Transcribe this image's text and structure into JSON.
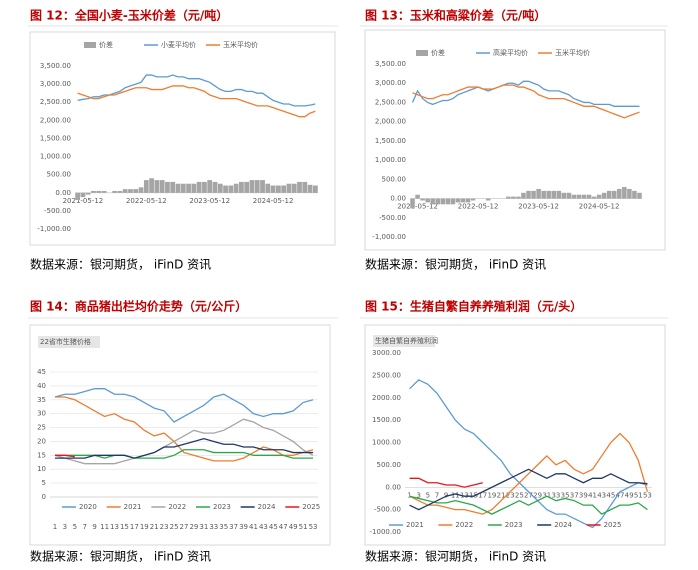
{
  "chart_data": [
    {
      "type": "line",
      "title": "图 12：全国小麦-玉米价差（元/吨）",
      "source": "数据来源：银河期货， iFinD 资讯",
      "categories": [
        null,
        "2021-05-12",
        null,
        null,
        null,
        null,
        null,
        null,
        null,
        null,
        null,
        null,
        null,
        "2022-05-12",
        null,
        null,
        null,
        null,
        null,
        null,
        null,
        null,
        null,
        null,
        null,
        "2023-05-12",
        null,
        null,
        null,
        null,
        null,
        null,
        null,
        null,
        null,
        null,
        null,
        "2024-05-12",
        null,
        null,
        null,
        null,
        null,
        null,
        null,
        null
      ],
      "ylim": [
        -1000,
        3500
      ],
      "yticks": [
        {
          "value": -1000,
          "label": "-1,000.00"
        },
        {
          "value": -500,
          "label": "-500.00"
        },
        {
          "value": 0,
          "label": "0.00"
        },
        {
          "value": 500,
          "label": "500.00"
        },
        {
          "value": 1000,
          "label": "1,000.00"
        },
        {
          "value": 1500,
          "label": "1,500.00"
        },
        {
          "value": 2000,
          "label": "2,000.00"
        },
        {
          "value": 2500,
          "label": "2,500.00"
        },
        {
          "value": 3000,
          "label": "3,000.00"
        },
        {
          "value": 3500,
          "label": "3,500.00"
        }
      ],
      "grid": false,
      "legend": "top",
      "series": [
        {
          "name": "价差",
          "type": "bar",
          "color": "#a5a5a5",
          "values": [
            -200,
            -120,
            -50,
            50,
            50,
            50,
            0,
            50,
            50,
            100,
            100,
            100,
            150,
            350,
            400,
            350,
            350,
            300,
            300,
            250,
            250,
            250,
            250,
            300,
            300,
            350,
            300,
            250,
            200,
            200,
            250,
            300,
            300,
            350,
            350,
            350,
            250,
            200,
            200,
            200,
            250,
            250,
            300,
            300,
            220,
            200
          ]
        },
        {
          "name": "小麦平均价",
          "color": "#5b9bd5",
          "values": [
            2550,
            2580,
            2600,
            2650,
            2650,
            2700,
            2700,
            2750,
            2800,
            2900,
            2950,
            3000,
            3050,
            3250,
            3250,
            3200,
            3200,
            3200,
            3250,
            3200,
            3200,
            3150,
            3150,
            3150,
            3100,
            3050,
            2950,
            2850,
            2800,
            2800,
            2850,
            2850,
            2800,
            2800,
            2750,
            2750,
            2650,
            2550,
            2500,
            2450,
            2450,
            2400,
            2400,
            2400,
            2420,
            2450
          ]
        },
        {
          "name": "玉米平均价",
          "color": "#ed7d31",
          "values": [
            2750,
            2700,
            2650,
            2600,
            2600,
            2650,
            2700,
            2700,
            2750,
            2800,
            2850,
            2900,
            2900,
            2900,
            2850,
            2850,
            2850,
            2900,
            2950,
            2950,
            2950,
            2900,
            2900,
            2850,
            2800,
            2700,
            2650,
            2600,
            2600,
            2600,
            2600,
            2550,
            2500,
            2450,
            2400,
            2400,
            2400,
            2350,
            2300,
            2250,
            2200,
            2150,
            2100,
            2100,
            2200,
            2250
          ]
        }
      ]
    },
    {
      "type": "line",
      "title": "图 13：玉米和高粱价差（元/吨）",
      "source": "数据来源：银河期货， iFinD 资讯",
      "categories": [
        null,
        "2021-05-12",
        null,
        null,
        null,
        null,
        null,
        null,
        null,
        null,
        null,
        null,
        null,
        "2022-05-12",
        null,
        null,
        null,
        null,
        null,
        null,
        null,
        null,
        null,
        null,
        null,
        "2023-05-12",
        null,
        null,
        null,
        null,
        null,
        null,
        null,
        null,
        null,
        null,
        null,
        "2024-05-12",
        null,
        null,
        null,
        null,
        null,
        null,
        null,
        null
      ],
      "ylim": [
        -1000,
        3500
      ],
      "yticks": [
        {
          "value": -1000,
          "label": "-1,000.00"
        },
        {
          "value": -500,
          "label": "-500.00"
        },
        {
          "value": 0,
          "label": "0.00"
        },
        {
          "value": 500,
          "label": "500.00"
        },
        {
          "value": 1000,
          "label": "1,000.00"
        },
        {
          "value": 1500,
          "label": "1,500.00"
        },
        {
          "value": 2000,
          "label": "2,000.00"
        },
        {
          "value": 2500,
          "label": "2,500.00"
        },
        {
          "value": 3000,
          "label": "3,000.00"
        },
        {
          "value": 3500,
          "label": "3,500.00"
        }
      ],
      "grid": false,
      "legend": "top",
      "series": [
        {
          "name": "价差",
          "type": "bar",
          "color": "#a5a5a5",
          "values": [
            -250,
            100,
            -50,
            -100,
            -150,
            -150,
            -150,
            -150,
            -150,
            -100,
            -100,
            -100,
            -50,
            0,
            0,
            -50,
            0,
            0,
            0,
            50,
            50,
            50,
            150,
            200,
            200,
            250,
            200,
            200,
            200,
            200,
            150,
            150,
            100,
            100,
            100,
            100,
            50,
            100,
            150,
            200,
            200,
            250,
            300,
            250,
            200,
            150
          ]
        },
        {
          "name": "高粱平均价",
          "color": "#5b9bd5",
          "values": [
            2500,
            2800,
            2600,
            2500,
            2450,
            2500,
            2550,
            2550,
            2600,
            2700,
            2750,
            2800,
            2850,
            2900,
            2850,
            2800,
            2850,
            2900,
            2950,
            3000,
            3000,
            2950,
            3050,
            3050,
            3000,
            2950,
            2850,
            2800,
            2800,
            2800,
            2750,
            2700,
            2600,
            2550,
            2500,
            2500,
            2450,
            2450,
            2450,
            2450,
            2400,
            2400,
            2400,
            2400,
            2400,
            2400
          ]
        },
        {
          "name": "玉米平均价",
          "color": "#ed7d31",
          "values": [
            2750,
            2700,
            2650,
            2600,
            2600,
            2650,
            2700,
            2700,
            2750,
            2800,
            2850,
            2900,
            2900,
            2900,
            2850,
            2850,
            2850,
            2900,
            2950,
            2950,
            2950,
            2900,
            2900,
            2850,
            2800,
            2700,
            2650,
            2600,
            2600,
            2600,
            2600,
            2550,
            2500,
            2450,
            2400,
            2400,
            2400,
            2350,
            2300,
            2250,
            2200,
            2150,
            2100,
            2150,
            2200,
            2250
          ]
        }
      ]
    },
    {
      "type": "line",
      "title": "图 14：商品猪出栏均价走势（元/公斤）",
      "subtitle": "22省市生猪价格",
      "source": "数据来源：银河期货， iFinD 资讯",
      "categories": [
        1,
        3,
        5,
        7,
        9,
        11,
        13,
        15,
        17,
        19,
        21,
        23,
        25,
        27,
        29,
        31,
        33,
        35,
        37,
        39,
        41,
        43,
        45,
        47,
        49,
        51,
        53
      ],
      "ylim": [
        0,
        45
      ],
      "yticks": [
        0,
        5,
        10,
        15,
        20,
        25,
        30,
        35,
        40,
        45
      ],
      "grid": true,
      "legend": "bottom",
      "series": [
        {
          "name": "2020",
          "color": "#5b9bd5",
          "values": [
            36,
            37,
            37,
            38,
            39,
            39,
            37,
            37,
            36,
            34,
            32,
            31,
            27,
            29,
            31,
            33,
            36,
            37,
            35,
            33,
            30,
            29,
            30,
            30,
            31,
            34,
            35
          ]
        },
        {
          "name": "2021",
          "color": "#ed7d31",
          "values": [
            36,
            36,
            35,
            33,
            31,
            29,
            30,
            28,
            27,
            24,
            22,
            23,
            20,
            16,
            15,
            14,
            13,
            13,
            13,
            14,
            16,
            18,
            17,
            15,
            15,
            16,
            17
          ]
        },
        {
          "name": "2022",
          "color": "#a5a5a5",
          "values": [
            15,
            14,
            13,
            12,
            12,
            12,
            12,
            13,
            14,
            15,
            16,
            18,
            20,
            22,
            24,
            23,
            23,
            24,
            26,
            28,
            27,
            25,
            24,
            22,
            20,
            17,
            15
          ]
        },
        {
          "name": "2023",
          "color": "#2aa84a",
          "values": [
            15,
            15,
            15,
            15,
            15,
            14,
            15,
            15,
            14,
            14,
            14,
            14,
            15,
            17,
            17,
            17,
            16,
            16,
            16,
            16,
            15,
            15,
            15,
            15,
            14,
            14,
            14
          ]
        },
        {
          "name": "2024",
          "color": "#1f3864",
          "values": [
            14,
            14,
            14,
            14,
            15,
            15,
            15,
            15,
            14,
            15,
            16,
            18,
            18,
            19,
            20,
            21,
            20,
            19,
            19,
            18,
            18,
            17,
            17,
            17,
            16,
            16,
            16
          ]
        },
        {
          "name": "2025",
          "color": "#e8151b",
          "values": [
            15,
            15,
            14.5,
            null,
            null,
            null,
            null,
            null,
            null,
            null,
            null,
            null,
            null,
            null,
            null,
            null,
            null,
            null,
            null,
            null,
            null,
            null,
            null,
            null,
            null,
            null,
            null
          ]
        }
      ]
    },
    {
      "type": "line",
      "title": "图 15：生猪自繁自养养殖利润（元/头）",
      "subtitle": "生猪自繁自养殖利润",
      "source": "数据来源：银河期货， iFinD 资讯",
      "categories": [
        1,
        3,
        5,
        7,
        9,
        11,
        13,
        15,
        17,
        19,
        21,
        23,
        25,
        27,
        29,
        31,
        33,
        35,
        37,
        39,
        41,
        43,
        45,
        47,
        49,
        51,
        53
      ],
      "ylim": [
        -1000,
        3000
      ],
      "yticks": [
        {
          "value": -1000,
          "label": "-1000.00"
        },
        {
          "value": -500,
          "label": "-500.00"
        },
        {
          "value": 0,
          "label": "0.00"
        },
        {
          "value": 500,
          "label": "500.00"
        },
        {
          "value": 1000,
          "label": "1000.00"
        },
        {
          "value": 1500,
          "label": "1500.00"
        },
        {
          "value": 2000,
          "label": "2000.00"
        },
        {
          "value": 2500,
          "label": "2500.00"
        },
        {
          "value": 3000,
          "label": "3000.00"
        }
      ],
      "grid": false,
      "legend": "bottom",
      "series": [
        {
          "name": "2021",
          "color": "#5b9bd5",
          "values": [
            2200,
            2400,
            2300,
            2100,
            1800,
            1500,
            1300,
            1200,
            1000,
            800,
            600,
            300,
            100,
            -100,
            -300,
            -500,
            -600,
            -600,
            -700,
            -800,
            -900,
            -700,
            -400,
            -100,
            0,
            100,
            50
          ]
        },
        {
          "name": "2022",
          "color": "#ed7d31",
          "values": [
            -200,
            -300,
            -400,
            -400,
            -450,
            -500,
            -500,
            -550,
            -600,
            -500,
            -300,
            -100,
            100,
            300,
            500,
            700,
            500,
            600,
            400,
            300,
            400,
            700,
            1000,
            1200,
            1000,
            600,
            -100
          ]
        },
        {
          "name": "2023",
          "color": "#2aa84a",
          "values": [
            -200,
            -250,
            -300,
            -350,
            -350,
            -300,
            -350,
            -400,
            -500,
            -600,
            -500,
            -400,
            -300,
            -400,
            -300,
            -200,
            -300,
            -250,
            -300,
            -400,
            -400,
            -600,
            -500,
            -400,
            -400,
            -350,
            -500
          ]
        },
        {
          "name": "2024",
          "color": "#1f3864",
          "values": [
            -400,
            -500,
            -400,
            -300,
            -200,
            -150,
            -200,
            -200,
            -100,
            0,
            100,
            200,
            300,
            400,
            300,
            200,
            300,
            300,
            200,
            100,
            200,
            200,
            300,
            200,
            100,
            100,
            80
          ]
        },
        {
          "name": "2025",
          "color": "#e8151b",
          "values": [
            200,
            200,
            100,
            100,
            50,
            50,
            0,
            50,
            100,
            null,
            null,
            null,
            null,
            null,
            null,
            null,
            null,
            null,
            null,
            null,
            null,
            null,
            null,
            null,
            null,
            null,
            null
          ]
        }
      ]
    }
  ]
}
